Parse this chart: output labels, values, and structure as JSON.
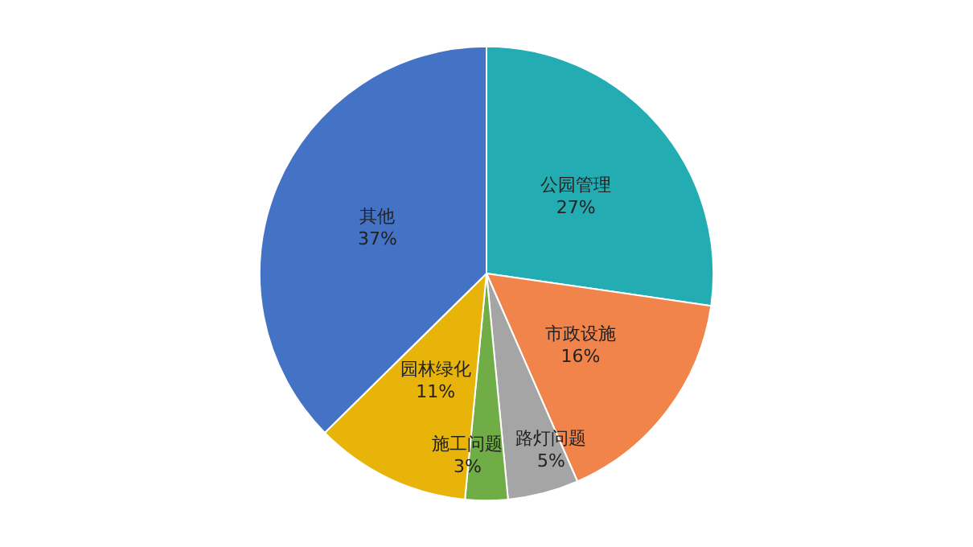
{
  "chart_data": {
    "type": "pie",
    "categories": [
      "公园管理",
      "市政设施",
      "路灯问题",
      "施工问题",
      "园林绿化",
      "其他"
    ],
    "values": [
      27,
      16,
      5,
      3,
      11,
      37
    ],
    "colors": [
      "#23adb3",
      "#f0844a",
      "#a5a5a5",
      "#70ad47",
      "#e8b40a",
      "#4472c4"
    ],
    "value_labels": [
      "27%",
      "16%",
      "5%",
      "3%",
      "11%",
      "37%"
    ],
    "legend": false
  }
}
